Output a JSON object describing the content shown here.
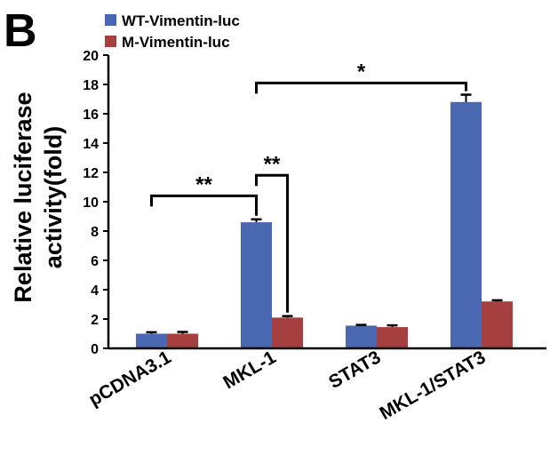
{
  "panel_label": "B",
  "chart_data": {
    "type": "bar",
    "categories": [
      "pCDNA3.1",
      "MKL-1",
      "STAT3",
      "MKL-1/STAT3"
    ],
    "series": [
      {
        "name": "WT-Vimentin-luc",
        "color": "#4a67b1",
        "values": [
          1.0,
          8.6,
          1.55,
          16.8
        ],
        "errors": [
          0.1,
          0.2,
          0.05,
          0.5
        ]
      },
      {
        "name": "M-Vimentin-luc",
        "color": "#a63f3f",
        "values": [
          1.0,
          2.1,
          1.45,
          3.2
        ],
        "errors": [
          0.12,
          0.1,
          0.12,
          0.08
        ]
      }
    ],
    "ylabel_lines": [
      "Relative luciferase",
      "activity(fold)"
    ],
    "ylim": [
      0,
      20
    ],
    "yticks": [
      "0",
      "2",
      "4",
      "6",
      "8",
      "10",
      "12",
      "14",
      "16",
      "18",
      "20"
    ],
    "significance": [
      {
        "label": "**",
        "from": [
          0,
          0
        ],
        "to": [
          1,
          0
        ],
        "level": 10.4
      },
      {
        "label": "**",
        "from": [
          1,
          0
        ],
        "to": [
          1,
          1
        ],
        "level": 11.8
      },
      {
        "label": "*",
        "from": [
          1,
          0
        ],
        "to": [
          3,
          0
        ],
        "level": 18.1
      }
    ]
  }
}
